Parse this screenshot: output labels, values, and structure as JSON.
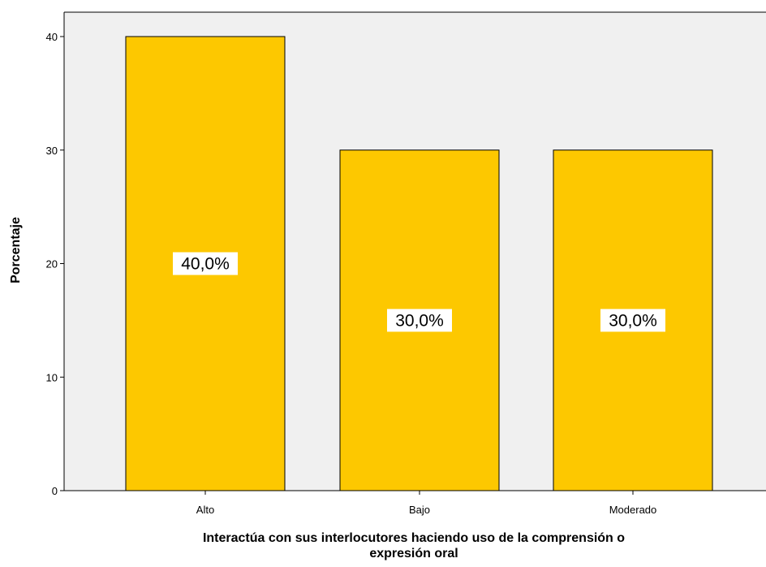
{
  "chart_data": {
    "type": "bar",
    "categories": [
      "Alto",
      "Bajo",
      "Moderado"
    ],
    "values": [
      40,
      30,
      30
    ],
    "data_labels": [
      "40,0%",
      "30,0%",
      "30,0%"
    ],
    "title": "",
    "xlabel_lines": [
      "Interactúa con sus interlocutores haciendo uso de la comprensión o",
      "expresión oral"
    ],
    "ylabel": "Porcentaje",
    "ylim": [
      0,
      40
    ],
    "yticks": [
      0,
      10,
      20,
      30,
      40
    ],
    "grid": false,
    "legend": "none",
    "colors": {
      "plot_background": "#f0f0f0",
      "bar_fill": "#fdc800",
      "bar_stroke": "#000000",
      "label_box": "#ffffff"
    }
  }
}
